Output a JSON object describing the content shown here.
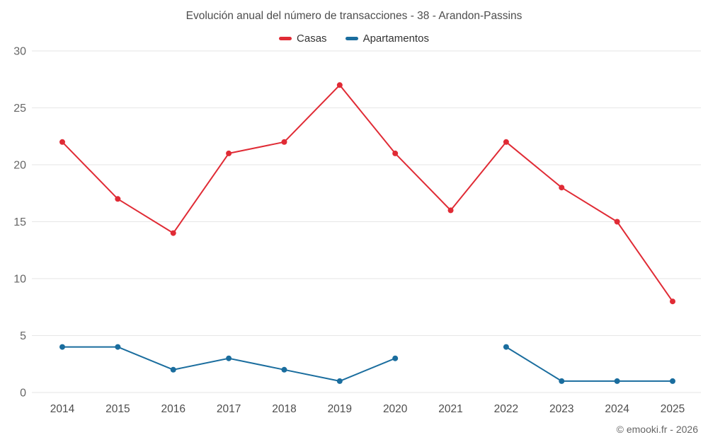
{
  "chart_data": {
    "type": "line",
    "title": "Evolución anual del número de transacciones - 38 - Arandon-Passins",
    "categories": [
      "2014",
      "2015",
      "2016",
      "2017",
      "2018",
      "2019",
      "2020",
      "2021",
      "2022",
      "2023",
      "2024",
      "2025"
    ],
    "series": [
      {
        "name": "Casas",
        "color": "#e02b35",
        "values": [
          22,
          17,
          14,
          21,
          22,
          27,
          21,
          16,
          22,
          18,
          15,
          8
        ]
      },
      {
        "name": "Apartamentos",
        "color": "#1a6d9e",
        "values": [
          4,
          4,
          2,
          3,
          2,
          1,
          3,
          null,
          4,
          1,
          1,
          1
        ]
      }
    ],
    "xlabel": "",
    "ylabel": "",
    "ylim": [
      0,
      30
    ],
    "yticks": [
      0,
      5,
      10,
      15,
      20,
      25,
      30
    ],
    "grid": "horizontal",
    "legend_position": "top"
  },
  "footer": {
    "credit": "© emooki.fr - 2026"
  }
}
